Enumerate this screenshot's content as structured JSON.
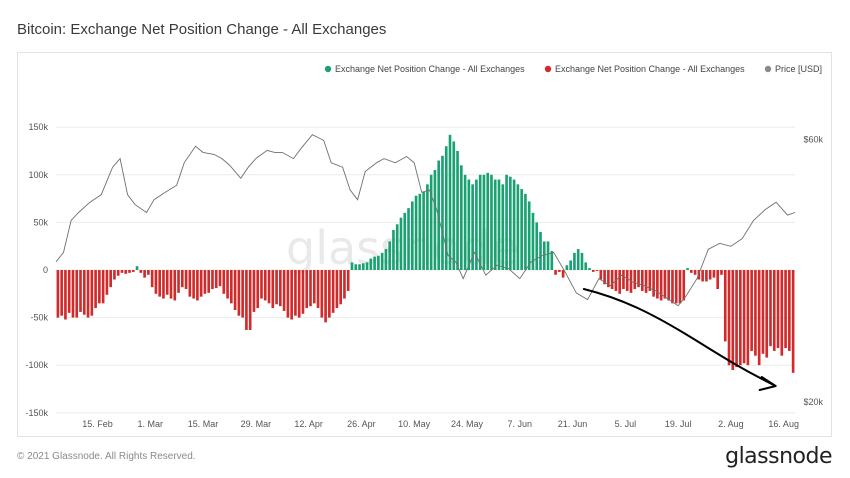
{
  "title": "Bitcoin: Exchange Net Position Change - All Exchanges",
  "footer": {
    "copyright": "© 2021 Glassnode. All Rights Reserved.",
    "brand": "glassnode"
  },
  "watermark": "glassnode",
  "colors": {
    "positive": "#1aa172",
    "negative": "#d12a2a",
    "price": "#8a8a8a",
    "arrow": "#000000"
  },
  "chart_data": {
    "type": "bar",
    "title": "Bitcoin: Exchange Net Position Change - All Exchanges",
    "legend": [
      {
        "label": "Exchange Net Position Change - All Exchanges",
        "color": "#1aa172"
      },
      {
        "label": "Exchange Net Position Change - All Exchanges",
        "color": "#d12a2a"
      },
      {
        "label": "Price [USD]",
        "color": "#8a8a8a"
      }
    ],
    "legend_position": "top-right",
    "x_ticks": [
      "15. Feb",
      "1. Mar",
      "15. Mar",
      "29. Mar",
      "12. Apr",
      "26. Apr",
      "10. May",
      "24. May",
      "7. Jun",
      "21. Jun",
      "5. Jul",
      "19. Jul",
      "2. Aug",
      "16. Aug"
    ],
    "x_range": [
      "2021-02-04",
      "2021-08-19"
    ],
    "y_left": {
      "ticks": [
        "150k",
        "100k",
        "50k",
        "0",
        "-50k",
        "-100k",
        "-150k"
      ],
      "range": [
        -150000,
        150000
      ]
    },
    "y_right": {
      "ticks": [
        "$60k",
        "$20k"
      ],
      "scale": "log",
      "range": [
        20000,
        75000
      ]
    },
    "grid": "horizontal",
    "series": [
      {
        "name": "Exchange Net Position Change - All Exchanges",
        "kind": "bars",
        "values": [
          -50000,
          -48000,
          -52000,
          -45000,
          -50000,
          -50000,
          -44000,
          -47000,
          -50000,
          -48000,
          -40000,
          -35000,
          -35000,
          -26000,
          -18000,
          -10000,
          -6000,
          -3000,
          -4000,
          -3000,
          -2000,
          4000,
          -3000,
          -8000,
          -5000,
          -18000,
          -25000,
          -28000,
          -30000,
          -26000,
          -30000,
          -32000,
          -24000,
          -18000,
          -20000,
          -28000,
          -30000,
          -32000,
          -28000,
          -25000,
          -24000,
          -20000,
          -19000,
          -17000,
          -25000,
          -30000,
          -35000,
          -42000,
          -48000,
          -50000,
          -63000,
          -63000,
          -44000,
          -40000,
          -30000,
          -32000,
          -35000,
          -40000,
          -36000,
          -38000,
          -43000,
          -50000,
          -52000,
          -48000,
          -50000,
          -46000,
          -40000,
          -38000,
          -35000,
          -40000,
          -50000,
          -55000,
          -50000,
          -45000,
          -40000,
          -36000,
          -30000,
          -22000,
          8000,
          6000,
          6000,
          7000,
          8000,
          12000,
          14000,
          15000,
          18000,
          22000,
          30000,
          42000,
          48000,
          55000,
          60000,
          65000,
          72000,
          78000,
          80000,
          82000,
          90000,
          100000,
          105000,
          115000,
          120000,
          130000,
          142000,
          135000,
          125000,
          110000,
          100000,
          95000,
          90000,
          95000,
          100000,
          100000,
          102000,
          100000,
          95000,
          95000,
          90000,
          100000,
          98000,
          95000,
          90000,
          85000,
          80000,
          72000,
          60000,
          50000,
          40000,
          30000,
          30000,
          20000,
          -5000,
          -2000,
          -8000,
          5000,
          10000,
          18000,
          22000,
          18000,
          8000,
          2000,
          -2000,
          -1000,
          -10000,
          -15000,
          -18000,
          -20000,
          -22000,
          -25000,
          -20000,
          -22000,
          -24000,
          -20000,
          -18000,
          -22000,
          -24000,
          -22000,
          -28000,
          -30000,
          -32000,
          -30000,
          -32000,
          -35000,
          -35000,
          -35000,
          -32000,
          2000,
          -3000,
          -5000,
          -10000,
          -12000,
          -12000,
          -10000,
          -8000,
          -20000,
          -5000,
          -75000,
          -100000,
          -105000,
          -102000,
          -100000,
          -98000,
          -100000,
          -85000,
          -90000,
          -100000,
          -88000,
          -92000,
          -80000,
          -85000,
          -82000,
          -90000,
          -82000,
          -85000,
          -108000
        ]
      },
      {
        "name": "Price [USD]",
        "kind": "line",
        "axis": "right",
        "dates": [
          "2021-02-04",
          "2021-02-06",
          "2021-02-08",
          "2021-02-10",
          "2021-02-13",
          "2021-02-16",
          "2021-02-19",
          "2021-02-21",
          "2021-02-23",
          "2021-02-25",
          "2021-02-28",
          "2021-03-02",
          "2021-03-05",
          "2021-03-08",
          "2021-03-10",
          "2021-03-13",
          "2021-03-15",
          "2021-03-18",
          "2021-03-20",
          "2021-03-22",
          "2021-03-25",
          "2021-03-27",
          "2021-03-29",
          "2021-04-01",
          "2021-04-03",
          "2021-04-05",
          "2021-04-08",
          "2021-04-10",
          "2021-04-13",
          "2021-04-14",
          "2021-04-16",
          "2021-04-18",
          "2021-04-21",
          "2021-04-23",
          "2021-04-25",
          "2021-04-27",
          "2021-04-30",
          "2021-05-02",
          "2021-05-05",
          "2021-05-08",
          "2021-05-10",
          "2021-05-12",
          "2021-05-14",
          "2021-05-16",
          "2021-05-19",
          "2021-05-21",
          "2021-05-23",
          "2021-05-26",
          "2021-05-29",
          "2021-06-01",
          "2021-06-04",
          "2021-06-07",
          "2021-06-10",
          "2021-06-13",
          "2021-06-16",
          "2021-06-19",
          "2021-06-22",
          "2021-06-25",
          "2021-06-28",
          "2021-07-01",
          "2021-07-04",
          "2021-07-07",
          "2021-07-10",
          "2021-07-13",
          "2021-07-16",
          "2021-07-19",
          "2021-07-21",
          "2021-07-24",
          "2021-07-27",
          "2021-07-30",
          "2021-08-02",
          "2021-08-05",
          "2021-08-08",
          "2021-08-11",
          "2021-08-14",
          "2021-08-17",
          "2021-08-19"
        ],
        "values": [
          37000,
          38500,
          44000,
          45500,
          47500,
          49000,
          55000,
          57000,
          49000,
          47000,
          45500,
          48000,
          49500,
          51000,
          56000,
          60000,
          58500,
          58000,
          57000,
          55500,
          52500,
          55000,
          57000,
          59000,
          58500,
          58500,
          57000,
          59500,
          63000,
          62500,
          61500,
          56000,
          55000,
          50000,
          48000,
          54000,
          56000,
          57000,
          56000,
          57500,
          56000,
          49500,
          50000,
          46000,
          38000,
          37000,
          34500,
          38500,
          35000,
          36500,
          36000,
          34500,
          37000,
          38000,
          38500,
          35500,
          32500,
          31600,
          34500,
          33500,
          35000,
          34000,
          33500,
          32800,
          31800,
          30800,
          32000,
          34500,
          39000,
          40000,
          39500,
          40800,
          44000,
          46000,
          47500,
          45000,
          45500
        ]
      }
    ],
    "annotations": [
      {
        "type": "hand-drawn arrow",
        "from": "2021-06-24",
        "to": "2021-08-16",
        "color": "#000000"
      }
    ]
  }
}
